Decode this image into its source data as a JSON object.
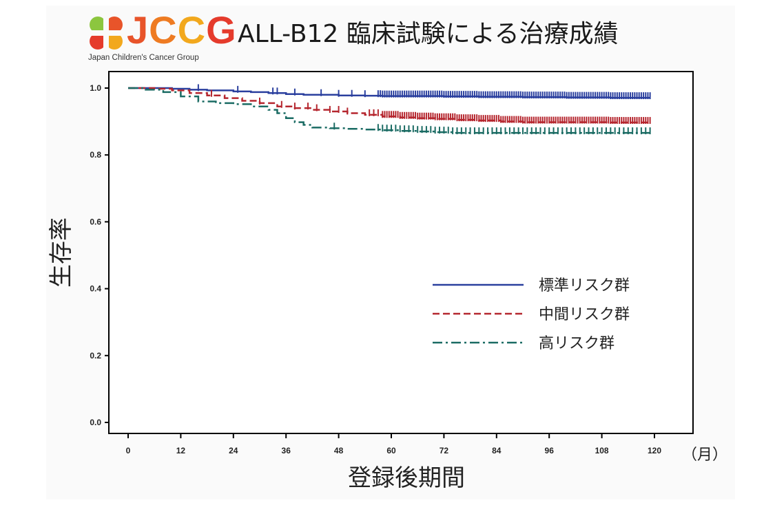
{
  "header": {
    "logo_word": [
      "J",
      "C",
      "C",
      "G"
    ],
    "logo_tagline": "Japan Children's Cancer Group",
    "logo_colors": [
      "#e8542a",
      "#ee7b22",
      "#f2a81d",
      "#e53b2c"
    ],
    "title": "ALL-B12 臨床試験による治療成績"
  },
  "chart_data": {
    "type": "line",
    "step": true,
    "xlabel": "登録後期間",
    "xunit": "（月）",
    "ylabel": "生存率",
    "xlim": [
      0,
      120
    ],
    "ylim": [
      0,
      1.0
    ],
    "xticks": [
      0,
      12,
      24,
      36,
      48,
      60,
      72,
      84,
      96,
      108,
      120
    ],
    "yticks": [
      "0.0",
      "0.2",
      "0.4",
      "0.6",
      "0.8",
      "1.0"
    ],
    "grid": false,
    "legend_position": "center-right",
    "series": [
      {
        "name": "標準リスク群",
        "color": "#2a3f9e",
        "dash": "solid",
        "points": [
          [
            0,
            1.0
          ],
          [
            6,
            1.0
          ],
          [
            10,
            0.998
          ],
          [
            14,
            0.995
          ],
          [
            18,
            0.993
          ],
          [
            24,
            0.99
          ],
          [
            28,
            0.988
          ],
          [
            32,
            0.985
          ],
          [
            36,
            0.982
          ],
          [
            40,
            0.98
          ],
          [
            48,
            0.978
          ],
          [
            54,
            0.977
          ],
          [
            58,
            0.976
          ],
          [
            66,
            0.976
          ],
          [
            72,
            0.975
          ],
          [
            80,
            0.974
          ],
          [
            90,
            0.973
          ],
          [
            100,
            0.972
          ],
          [
            110,
            0.971
          ],
          [
            119,
            0.971
          ]
        ],
        "censor_x": [
          16,
          25,
          33,
          34,
          38,
          44,
          48,
          51,
          54,
          57,
          57.5,
          58,
          58.5,
          59,
          59.5,
          60,
          60.5,
          61,
          61.5,
          62,
          62.5,
          63,
          63.5,
          64,
          64.5,
          65,
          65.5,
          66,
          66.5,
          67,
          67.5,
          68,
          68.5,
          69,
          69.5,
          70,
          70.5,
          71,
          71.5,
          72,
          72.5,
          73,
          73.5,
          74,
          74.5,
          75,
          75.5,
          76,
          76.5,
          77,
          77.5,
          78,
          78.5,
          79,
          79.5,
          80,
          80.5,
          81,
          81.5,
          82,
          82.5,
          83,
          83.5,
          84,
          84.5,
          85,
          85.5,
          86,
          86.5,
          87,
          87.5,
          88,
          88.5,
          89,
          89.5,
          90,
          90.5,
          91,
          91.5,
          92,
          92.5,
          93,
          93.5,
          94,
          94.5,
          95,
          95.5,
          96,
          96.5,
          97,
          97.5,
          98,
          98.5,
          99,
          99.5,
          100,
          100.5,
          101,
          101.5,
          102,
          102.5,
          103,
          103.5,
          104,
          104.5,
          105,
          105.5,
          106,
          106.5,
          107,
          107.5,
          108,
          108.5,
          109,
          109.5,
          110,
          110.5,
          111,
          111.5,
          112,
          112.5,
          113,
          113.5,
          114,
          114.5,
          115,
          115.5,
          116,
          116.5,
          117,
          117.5,
          118,
          118.5,
          119
        ]
      },
      {
        "name": "中間リスク群",
        "color": "#b5262e",
        "dash": "dashed",
        "points": [
          [
            0,
            1.0
          ],
          [
            6,
            0.998
          ],
          [
            10,
            0.993
          ],
          [
            14,
            0.985
          ],
          [
            18,
            0.978
          ],
          [
            22,
            0.97
          ],
          [
            26,
            0.962
          ],
          [
            30,
            0.955
          ],
          [
            34,
            0.945
          ],
          [
            38,
            0.94
          ],
          [
            42,
            0.935
          ],
          [
            46,
            0.93
          ],
          [
            50,
            0.925
          ],
          [
            54,
            0.92
          ],
          [
            58,
            0.915
          ],
          [
            62,
            0.912
          ],
          [
            66,
            0.91
          ],
          [
            70,
            0.908
          ],
          [
            75,
            0.905
          ],
          [
            80,
            0.903
          ],
          [
            85,
            0.9
          ],
          [
            90,
            0.898
          ],
          [
            100,
            0.898
          ],
          [
            110,
            0.897
          ],
          [
            119,
            0.897
          ]
        ],
        "censor_x": [
          19,
          30,
          35,
          38,
          41,
          43,
          46,
          48,
          50,
          55,
          56,
          57,
          58,
          58.5,
          59,
          59.5,
          60,
          60.5,
          61,
          61.5,
          62,
          62.5,
          63,
          63.5,
          64,
          64.5,
          65,
          65.5,
          66,
          66.5,
          67,
          67.5,
          68,
          68.5,
          69,
          69.5,
          70,
          70.5,
          71,
          71.5,
          72,
          72.5,
          73,
          73.5,
          74,
          74.5,
          75,
          75.5,
          76,
          76.5,
          77,
          77.5,
          78,
          78.5,
          79,
          79.5,
          80,
          80.5,
          81,
          81.5,
          82,
          82.5,
          83,
          83.5,
          84,
          84.5,
          85,
          85.5,
          86,
          86.5,
          87,
          87.5,
          88,
          88.5,
          89,
          89.5,
          90,
          90.5,
          91,
          91.5,
          92,
          92.5,
          93,
          93.5,
          94,
          94.5,
          95,
          95.5,
          96,
          96.5,
          97,
          97.5,
          98,
          98.5,
          99,
          99.5,
          100,
          100.5,
          101,
          101.5,
          102,
          102.5,
          103,
          103.5,
          104,
          104.5,
          105,
          105.5,
          106,
          106.5,
          107,
          107.5,
          108,
          108.5,
          109,
          109.5,
          110,
          110.5,
          111,
          111.5,
          112,
          112.5,
          113,
          113.5,
          114,
          114.5,
          115,
          115.5,
          116,
          116.5,
          117,
          117.5,
          118,
          118.5,
          119
        ]
      },
      {
        "name": "高リスク群",
        "color": "#1a6b63",
        "dash": "dashdot",
        "points": [
          [
            0,
            1.0
          ],
          [
            4,
            0.995
          ],
          [
            8,
            0.988
          ],
          [
            12,
            0.975
          ],
          [
            16,
            0.96
          ],
          [
            20,
            0.955
          ],
          [
            24,
            0.952
          ],
          [
            28,
            0.945
          ],
          [
            32,
            0.935
          ],
          [
            34,
            0.925
          ],
          [
            36,
            0.91
          ],
          [
            38,
            0.898
          ],
          [
            40,
            0.89
          ],
          [
            42,
            0.882
          ],
          [
            46,
            0.88
          ],
          [
            50,
            0.878
          ],
          [
            54,
            0.876
          ],
          [
            58,
            0.874
          ],
          [
            62,
            0.872
          ],
          [
            66,
            0.87
          ],
          [
            70,
            0.868
          ],
          [
            74,
            0.866
          ],
          [
            119,
            0.866
          ]
        ],
        "censor_x": [
          47,
          57,
          58,
          59,
          60,
          61,
          62,
          63,
          64,
          65,
          66,
          67,
          68,
          69,
          70,
          71,
          72,
          73,
          74,
          75,
          76,
          77,
          78,
          79,
          80,
          81,
          82,
          83,
          84,
          85,
          86,
          87,
          88,
          89,
          90,
          91,
          92,
          93,
          94,
          95,
          96,
          97,
          98,
          99,
          100,
          101,
          102,
          103,
          104,
          105,
          106,
          107,
          108,
          109,
          110,
          111,
          112,
          113,
          114,
          115,
          116,
          117,
          118,
          119
        ]
      }
    ]
  }
}
